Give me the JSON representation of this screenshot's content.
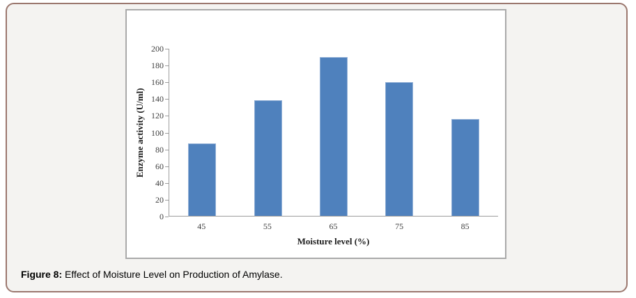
{
  "figure": {
    "caption_label": "Figure 8:",
    "caption_text": " Effect of Moisture Level on Production of Amylase."
  },
  "chart_data": {
    "type": "bar",
    "title": "",
    "categories": [
      "45",
      "55",
      "65",
      "75",
      "85"
    ],
    "values": [
      87,
      138,
      190,
      160,
      116
    ],
    "xlabel": "Moisture level (%)",
    "ylabel": "Enzyme activity (U/ml)",
    "ylim": [
      0,
      200
    ],
    "ytick_step": 20,
    "grid": false,
    "legend": "none",
    "bar_color": "#4f81bd"
  },
  "colors": {
    "bar_fill": "#4f81bd",
    "bar_edge": "#91afd6",
    "panel_border": "#9b776e",
    "panel_background": "#f4f3f1",
    "chart_frame_border": "#a9a9a9",
    "axis_line": "#9c9c9c",
    "tick_label": "#3d3d3d"
  }
}
